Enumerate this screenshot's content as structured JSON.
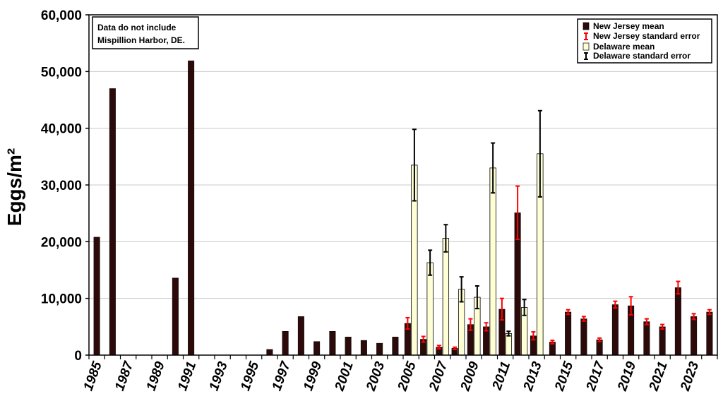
{
  "chart_data": {
    "type": "bar",
    "title": "",
    "xlabel": "",
    "ylabel": "Eggs/m²",
    "ylim": [
      0,
      60000
    ],
    "y_ticks": [
      "0",
      "10,000",
      "20,000",
      "30,000",
      "40,000",
      "50,000",
      "60,000"
    ],
    "y_tick_values": [
      0,
      10000,
      20000,
      30000,
      40000,
      50000,
      60000
    ],
    "x_tick_labels": [
      "1985",
      "1987",
      "1989",
      "1991",
      "1993",
      "1995",
      "1997",
      "1999",
      "2001",
      "2003",
      "2005",
      "2007",
      "2009",
      "2011",
      "2013",
      "2015",
      "2017",
      "2019",
      "2021",
      "2023"
    ],
    "grid": "horizontal",
    "legend_position": "top-right",
    "note_lines": [
      "Data do not include",
      "Mispillion Harbor, DE."
    ],
    "categories": [
      1985,
      1986,
      1987,
      1988,
      1989,
      1990,
      1991,
      1992,
      1993,
      1994,
      1995,
      1996,
      1997,
      1998,
      1999,
      2000,
      2001,
      2002,
      2003,
      2004,
      2005,
      2006,
      2007,
      2008,
      2009,
      2010,
      2011,
      2012,
      2013,
      2014,
      2015,
      2016,
      2017,
      2018,
      2019,
      2020,
      2021,
      2022,
      2023,
      2024
    ],
    "series": [
      {
        "name": "New Jersey mean",
        "color": "#2d0a0a",
        "values": [
          20800,
          47000,
          null,
          null,
          null,
          13600,
          51900,
          null,
          null,
          null,
          null,
          1000,
          4200,
          6800,
          2400,
          4200,
          3200,
          2600,
          2100,
          3200,
          5600,
          2800,
          1400,
          1200,
          5400,
          5000,
          8100,
          25100,
          3400,
          2300,
          7600,
          6400,
          2700,
          8900,
          8700,
          5900,
          5000,
          11900,
          6800,
          7600
        ],
        "error": [
          null,
          null,
          null,
          null,
          null,
          null,
          null,
          null,
          null,
          null,
          null,
          null,
          null,
          null,
          null,
          null,
          null,
          null,
          null,
          null,
          1000,
          500,
          300,
          200,
          1000,
          700,
          1900,
          4700,
          700,
          300,
          400,
          400,
          300,
          600,
          1600,
          500,
          400,
          1100,
          500,
          400
        ]
      },
      {
        "name": "New Jersey standard error",
        "color": "#ff0000"
      },
      {
        "name": "Delaware mean",
        "color": "#ffffd5",
        "values": [
          null,
          null,
          null,
          null,
          null,
          null,
          null,
          null,
          null,
          null,
          null,
          null,
          null,
          null,
          null,
          null,
          null,
          null,
          null,
          null,
          33500,
          16300,
          20600,
          11600,
          10200,
          33000,
          3800,
          8400,
          35500,
          null,
          null,
          null,
          null,
          null,
          null,
          null,
          null,
          null,
          null,
          null
        ],
        "error": [
          null,
          null,
          null,
          null,
          null,
          null,
          null,
          null,
          null,
          null,
          null,
          null,
          null,
          null,
          null,
          null,
          null,
          null,
          null,
          null,
          6300,
          2200,
          2400,
          2200,
          2000,
          4400,
          400,
          1400,
          7600,
          null,
          null,
          null,
          null,
          null,
          null,
          null,
          null,
          null,
          null,
          null
        ]
      },
      {
        "name": "Delaware standard error",
        "color": "#000000"
      }
    ]
  }
}
